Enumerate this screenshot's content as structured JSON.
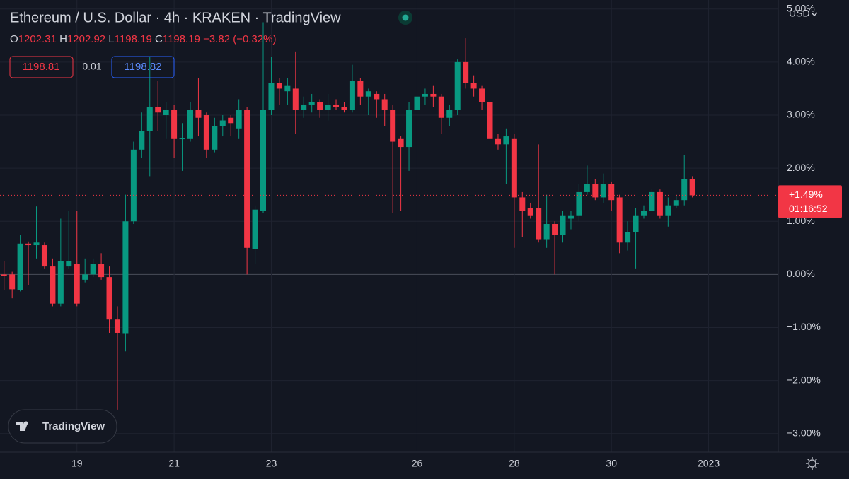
{
  "chart_data": {
    "type": "candlestick",
    "title": "Ethereum / U.S. Dollar · 4h · KRAKEN · TradingView",
    "ohlc_header": {
      "o_label": "O",
      "o": "1202.31",
      "h_label": "H",
      "h": "1202.92",
      "l_label": "L",
      "l": "1198.19",
      "c_label": "C",
      "c": "1198.19",
      "change": "−3.82 (−0.32%)"
    },
    "bid": "1198.81",
    "spread": "0.01",
    "ask": "1198.82",
    "currency": "USD",
    "logo": "TradingView",
    "countdown": "01:16:52",
    "last_price": {
      "value": 1.49,
      "label": "+1.49%"
    },
    "up_color": "#089981",
    "down_color": "#f23645",
    "grid": true,
    "xlim": [
      -0.5,
      95.6
    ],
    "xticks": [
      {
        "value": 9,
        "label": "19"
      },
      {
        "value": 21,
        "label": "21"
      },
      {
        "value": 33,
        "label": "23"
      },
      {
        "value": 51,
        "label": "26"
      },
      {
        "value": 63,
        "label": "28"
      },
      {
        "value": 75,
        "label": "30"
      },
      {
        "value": 87,
        "label": "2023"
      }
    ],
    "ylim": [
      -3.35,
      5.17
    ],
    "yticks": [
      {
        "value": 5,
        "label": "5.00%"
      },
      {
        "value": 4,
        "label": "4.00%"
      },
      {
        "value": 3,
        "label": "3.00%"
      },
      {
        "value": 2,
        "label": "2.00%"
      },
      {
        "value": 1,
        "label": "1.00%"
      },
      {
        "value": 0,
        "label": "0.00%"
      },
      {
        "value": -1,
        "label": "−1.00%"
      },
      {
        "value": -2,
        "label": "−2.00%"
      },
      {
        "value": -3,
        "label": "−3.00%"
      }
    ],
    "open": [
      0.0,
      0.0,
      -0.3,
      0.58,
      0.55,
      0.55,
      0.15,
      -0.55,
      0.15,
      0.2,
      -0.1,
      0.0,
      0.2,
      -0.05,
      -0.85,
      -1.12,
      1.0,
      2.35,
      2.7,
      3.15,
      3.0,
      3.1,
      2.55,
      2.55,
      3.1,
      3.0,
      2.35,
      2.8,
      2.95,
      2.75,
      3.1,
      0.48,
      1.2,
      3.1,
      3.6,
      3.45,
      3.5,
      3.1,
      3.2,
      3.25,
      3.1,
      3.2,
      3.15,
      3.1,
      3.65,
      3.35,
      3.4,
      3.3,
      3.1,
      2.55,
      2.4,
      3.1,
      3.35,
      3.4,
      3.35,
      2.95,
      3.1,
      4.0,
      3.6,
      3.5,
      3.25,
      2.55,
      2.45,
      2.55,
      1.45,
      1.25,
      1.25,
      0.65,
      0.95,
      0.75,
      1.05,
      1.1,
      1.55,
      1.7,
      1.45,
      1.7,
      1.45,
      0.6,
      0.8,
      1.1,
      1.2,
      1.55,
      1.1,
      1.3,
      1.4,
      1.8
    ],
    "high": [
      0.25,
      0.05,
      0.75,
      0.62,
      1.28,
      0.6,
      0.3,
      1.05,
      1.2,
      1.2,
      0.3,
      0.3,
      0.4,
      0.15,
      -0.6,
      1.5,
      2.5,
      3.05,
      4.1,
      3.65,
      3.25,
      3.2,
      2.85,
      3.25,
      3.7,
      3.05,
      2.95,
      3.0,
      3.0,
      3.3,
      3.15,
      1.3,
      4.75,
      4.1,
      3.7,
      3.7,
      4.2,
      3.35,
      3.4,
      3.3,
      3.4,
      3.3,
      3.25,
      3.95,
      3.7,
      3.5,
      3.45,
      3.4,
      3.2,
      2.6,
      3.25,
      3.65,
      3.5,
      3.55,
      3.4,
      3.2,
      4.05,
      4.45,
      3.75,
      3.55,
      3.3,
      2.65,
      2.75,
      2.65,
      1.55,
      1.35,
      2.45,
      1.5,
      1.0,
      1.2,
      1.2,
      1.7,
      2.05,
      1.8,
      1.9,
      1.75,
      1.5,
      1.0,
      1.25,
      1.3,
      1.6,
      1.6,
      1.45,
      1.5,
      2.25,
      1.85
    ],
    "low": [
      -0.3,
      -0.45,
      -0.32,
      -0.2,
      0.3,
      0.1,
      -0.6,
      -0.6,
      0.1,
      -0.6,
      -0.15,
      -0.05,
      -0.1,
      -1.1,
      -2.55,
      -1.45,
      0.95,
      2.2,
      1.85,
      2.7,
      2.55,
      2.2,
      1.95,
      2.5,
      2.6,
      2.2,
      2.3,
      2.6,
      2.6,
      2.55,
      0.0,
      0.2,
      1.15,
      3.0,
      3.2,
      3.2,
      2.65,
      2.95,
      3.05,
      2.95,
      2.9,
      3.1,
      3.05,
      3.05,
      3.2,
      3.0,
      2.95,
      2.8,
      1.15,
      1.2,
      1.95,
      3.1,
      3.2,
      3.15,
      2.65,
      2.8,
      3.0,
      3.5,
      3.35,
      3.1,
      2.15,
      2.35,
      1.7,
      0.5,
      0.7,
      1.05,
      0.6,
      0.5,
      0.0,
      0.6,
      0.85,
      1.0,
      1.5,
      1.4,
      1.35,
      1.2,
      0.4,
      0.45,
      0.1,
      1.05,
      1.2,
      1.05,
      0.9,
      1.25,
      1.3,
      1.45
    ],
    "close": [
      -0.03,
      -0.28,
      0.58,
      0.55,
      0.6,
      0.15,
      -0.55,
      0.25,
      0.25,
      -0.55,
      0.0,
      0.2,
      -0.05,
      -0.85,
      -1.1,
      1.0,
      2.35,
      2.7,
      3.15,
      3.05,
      3.1,
      2.55,
      2.56,
      3.1,
      2.95,
      2.35,
      2.8,
      2.9,
      2.85,
      3.1,
      0.5,
      1.22,
      3.1,
      3.6,
      3.5,
      3.55,
      3.1,
      3.2,
      3.25,
      3.1,
      3.2,
      3.15,
      3.1,
      3.65,
      3.35,
      3.45,
      3.3,
      3.1,
      2.5,
      2.4,
      3.1,
      3.35,
      3.4,
      3.35,
      2.95,
      3.1,
      4.0,
      3.6,
      3.5,
      3.25,
      2.55,
      2.45,
      2.6,
      1.45,
      1.2,
      1.1,
      0.65,
      0.95,
      0.75,
      1.1,
      1.1,
      1.55,
      1.7,
      1.45,
      1.7,
      1.4,
      0.6,
      0.8,
      1.1,
      1.2,
      1.55,
      1.1,
      1.3,
      1.4,
      1.8,
      1.49
    ]
  }
}
